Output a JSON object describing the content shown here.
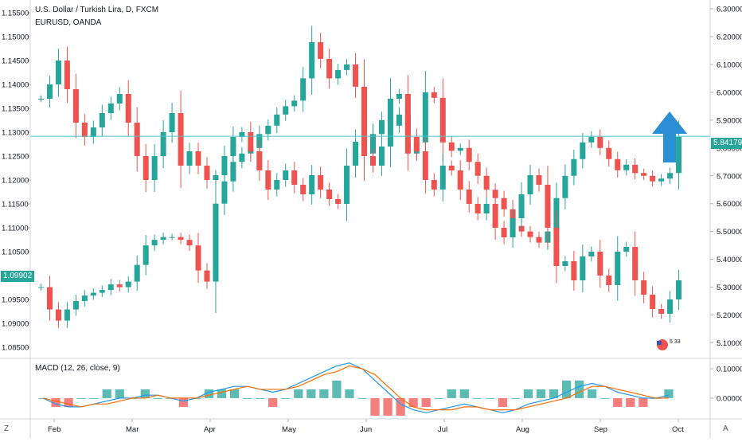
{
  "header": {
    "title": "U.S. Dollar / Turkish Lira, D, FXCM",
    "secondary_symbol": "EURUSD, OANDA"
  },
  "indicator": {
    "label": "MACD (12, 26, close, 9)"
  },
  "price_tags": {
    "right": "5.84179",
    "left": "1.09902"
  },
  "corner_labels": {
    "left": "Z",
    "right": "A"
  },
  "badge": {
    "text": "5 33"
  },
  "colors": {
    "up": "#26a69a",
    "down": "#ef5350",
    "macd_line": "#2196f3",
    "signal_line": "#ff6d00",
    "price_line": "#4fc3c7",
    "arrow": "#2b8fd6"
  },
  "chart_data": {
    "type": "candlestick",
    "title": "U.S. Dollar / Turkish Lira, D, FXCM",
    "x_ticks": [
      "Feb",
      "Mar",
      "Apr",
      "May",
      "Jun",
      "Jul",
      "Aug",
      "Sep",
      "Oct"
    ],
    "right_axis": {
      "ticks": [
        "6.30000",
        "6.20000",
        "6.10000",
        "6.00000",
        "5.90000",
        "5.80000",
        "5.70000",
        "5.60000",
        "5.50000",
        "5.40000",
        "5.30000",
        "5.20000",
        "5.10000"
      ],
      "range": [
        5.05,
        6.32
      ]
    },
    "left_axis": {
      "ticks": [
        "1.15500",
        "1.15000",
        "1.14500",
        "1.14000",
        "1.13500",
        "1.13000",
        "1.12500",
        "1.12000",
        "1.11500",
        "1.11000",
        "1.10500",
        "1.10000",
        "1.09500",
        "1.09000",
        "1.08500"
      ],
      "range": [
        1.083,
        1.157
      ]
    },
    "macd_axis": {
      "ticks": [
        "0.10000",
        "0.00000"
      ],
      "range": [
        -0.06,
        0.13
      ]
    },
    "series": [
      {
        "name": "USDTRY",
        "scale": "right",
        "values": [
          5.3,
          5.22,
          5.18,
          5.22,
          5.25,
          5.27,
          5.28,
          5.29,
          5.31,
          5.3,
          5.32,
          5.38,
          5.45,
          5.47,
          5.48,
          5.48,
          5.47,
          5.45,
          5.36,
          5.32,
          5.6,
          5.68,
          5.75,
          5.78,
          5.8,
          5.85,
          5.88,
          5.92,
          5.95,
          5.97,
          6.05,
          6.18,
          6.12,
          6.05,
          6.08,
          6.1,
          6.02,
          5.78,
          5.85,
          5.9,
          5.88,
          5.92,
          5.78,
          5.82,
          6.0,
          5.98,
          5.82,
          5.79,
          5.8,
          5.75,
          5.7,
          5.65,
          5.62,
          5.58,
          5.52,
          5.5,
          5.48,
          5.46,
          5.5,
          5.62,
          5.7,
          5.76,
          5.82,
          5.84,
          5.8,
          5.76,
          5.72,
          5.74,
          5.71,
          5.7,
          5.68,
          5.69,
          5.71,
          5.84
        ]
      },
      {
        "name": "EURUSD",
        "scale": "left",
        "values": [
          1.137,
          1.14,
          1.145,
          1.139,
          1.132,
          1.129,
          1.131,
          1.134,
          1.136,
          1.138,
          1.132,
          1.125,
          1.12,
          1.125,
          1.13,
          1.134,
          1.123,
          1.126,
          1.123,
          1.12,
          1.121,
          1.125,
          1.129,
          1.13,
          1.126,
          1.122,
          1.118,
          1.12,
          1.122,
          1.119,
          1.117,
          1.121,
          1.118,
          1.116,
          1.115,
          1.123,
          1.128,
          1.125,
          1.123,
          1.127,
          1.137,
          1.138,
          1.129,
          1.126,
          1.12,
          1.118,
          1.123,
          1.122,
          1.118,
          1.115,
          1.113,
          1.115,
          1.11,
          1.108,
          1.112,
          1.117,
          1.121,
          1.119,
          1.11,
          1.102,
          1.103,
          1.099,
          1.104,
          1.105,
          1.1,
          1.098,
          1.105,
          1.106,
          1.099,
          1.096,
          1.093,
          1.092,
          1.095,
          1.099
        ]
      }
    ],
    "macd_series": [
      {
        "name": "MACD",
        "values": [
          0.0,
          -0.02,
          -0.03,
          -0.03,
          -0.02,
          -0.01,
          0.0,
          0.0,
          0.01,
          0.01,
          0.0,
          -0.01,
          0.0,
          0.02,
          0.03,
          0.04,
          0.04,
          0.03,
          0.02,
          0.03,
          0.05,
          0.07,
          0.09,
          0.11,
          0.12,
          0.1,
          0.06,
          0.02,
          -0.02,
          -0.04,
          -0.05,
          -0.04,
          -0.03,
          -0.02,
          -0.03,
          -0.04,
          -0.05,
          -0.04,
          -0.02,
          -0.01,
          0.0,
          0.02,
          0.04,
          0.05,
          0.04,
          0.02,
          0.01,
          0.0,
          0.0,
          0.01
        ]
      },
      {
        "name": "Signal",
        "values": [
          0.0,
          -0.01,
          -0.02,
          -0.03,
          -0.02,
          -0.02,
          -0.01,
          0.0,
          0.0,
          0.01,
          0.0,
          0.0,
          0.0,
          0.01,
          0.02,
          0.03,
          0.04,
          0.03,
          0.03,
          0.03,
          0.04,
          0.06,
          0.08,
          0.09,
          0.11,
          0.1,
          0.08,
          0.04,
          0.0,
          -0.03,
          -0.04,
          -0.04,
          -0.04,
          -0.03,
          -0.03,
          -0.04,
          -0.04,
          -0.04,
          -0.03,
          -0.02,
          -0.01,
          0.0,
          0.02,
          0.04,
          0.04,
          0.03,
          0.02,
          0.01,
          0.0,
          0.0
        ]
      }
    ],
    "current_price": 5.84179,
    "grid": true,
    "annotation": "up-arrow"
  }
}
